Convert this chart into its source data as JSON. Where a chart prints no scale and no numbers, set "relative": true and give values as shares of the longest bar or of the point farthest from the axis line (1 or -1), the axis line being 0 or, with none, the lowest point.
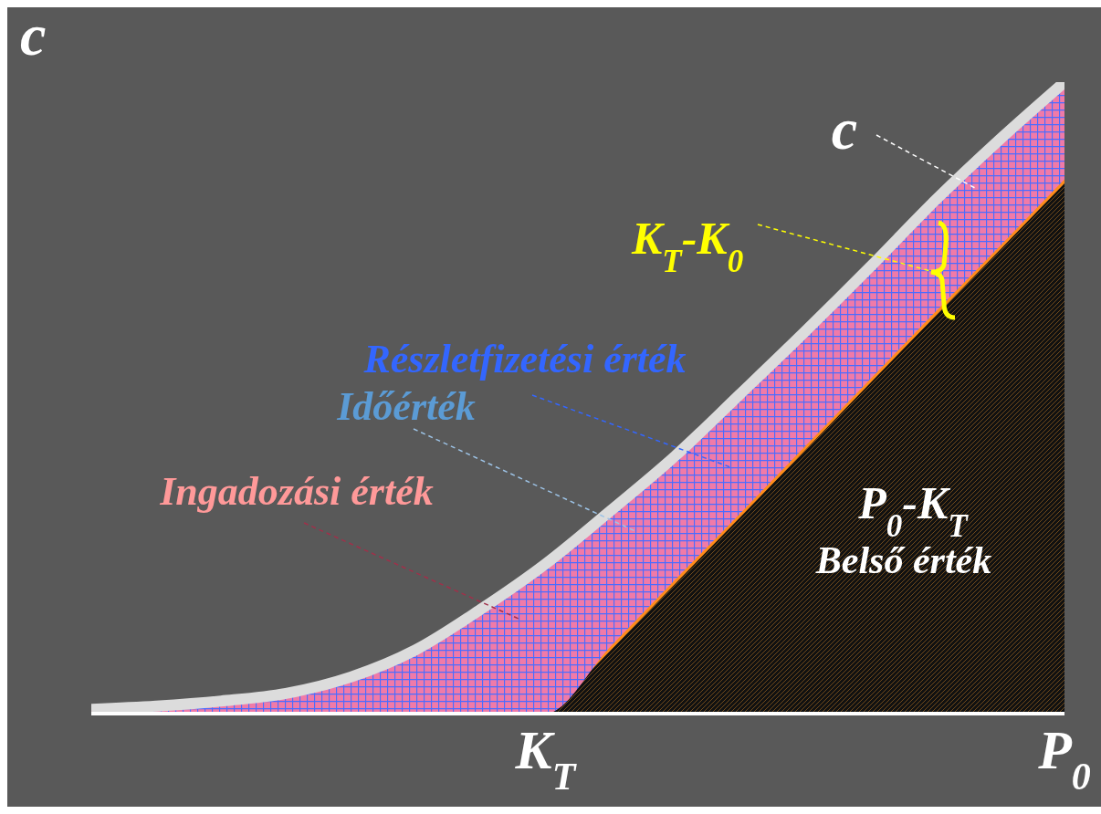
{
  "chart_data": {
    "type": "area",
    "stacked": true,
    "relative": true,
    "ylabel": "c",
    "categories": [
      null,
      null,
      null,
      null,
      null,
      null,
      null,
      "K$_{T}$",
      null,
      null,
      null,
      null,
      null,
      null,
      null,
      "P$_{0}$"
    ],
    "series": [
      {
        "color": "#ff8c1a",
        "values": [
          0,
          0,
          0,
          0,
          0,
          0,
          0,
          0,
          0.106,
          0.212,
          0.317,
          0.423,
          0.529,
          0.635,
          0.74,
          0.846
        ]
      },
      {
        "color": "#dcdcdc",
        "values": [
          0.007,
          0.012,
          0.02,
          0.032,
          0.058,
          0.101,
          0.165,
          0.237,
          0.215,
          0.196,
          0.189,
          0.182,
          0.178,
          0.177,
          0.169,
          0.154
        ]
      }
    ],
    "annotations": [
      "c",
      "K$_{T}$-K$_{0}$",
      "Részletfizetési érték",
      "Időérték",
      "Ingadozási érték",
      "P$_{0}$-K$_{T}$",
      "Belső érték"
    ],
    "grid": false,
    "legend": false
  }
}
